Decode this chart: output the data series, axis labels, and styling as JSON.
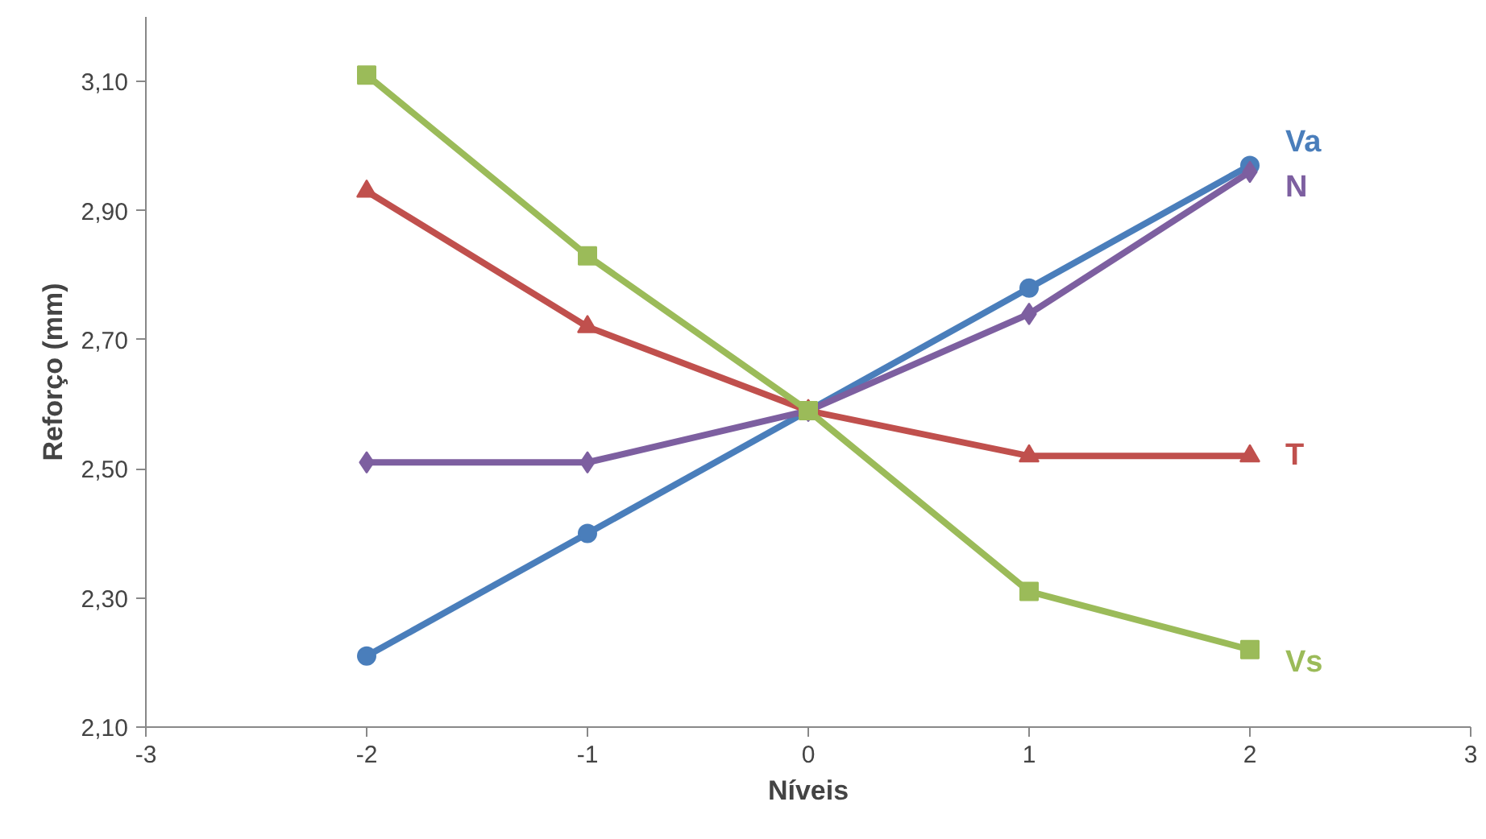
{
  "chart_data": {
    "type": "line",
    "xlabel": "Níveis",
    "ylabel": "Reforço (mm)",
    "x": [
      -2,
      -1,
      0,
      1,
      2
    ],
    "series": [
      {
        "name": "Va",
        "color": "#4a7ebb",
        "marker": "circle",
        "values": [
          2.21,
          2.4,
          2.59,
          2.78,
          2.97
        ]
      },
      {
        "name": "N",
        "color": "#7d5fa0",
        "marker": "diamond",
        "values": [
          2.51,
          2.51,
          2.59,
          2.74,
          2.96
        ]
      },
      {
        "name": "T",
        "color": "#c0504d",
        "marker": "triangle",
        "values": [
          2.93,
          2.72,
          2.59,
          2.52,
          2.52
        ]
      },
      {
        "name": "Vs",
        "color": "#9bbb59",
        "marker": "square",
        "values": [
          3.11,
          2.83,
          2.59,
          2.31,
          2.22
        ]
      }
    ],
    "xlim": [
      -3,
      3
    ],
    "xticks": [
      -3,
      -2,
      -1,
      0,
      1,
      2,
      3
    ],
    "ylim": [
      2.1,
      3.2
    ],
    "yticks": [
      {
        "value": 2.1,
        "label": "2,10"
      },
      {
        "value": 2.3,
        "label": "2,30"
      },
      {
        "value": 2.5,
        "label": "2,50"
      },
      {
        "value": 2.7,
        "label": "2,70"
      },
      {
        "value": 2.9,
        "label": "2,90"
      },
      {
        "value": 3.1,
        "label": "3,10"
      }
    ],
    "grid": false,
    "line_style": "solid"
  }
}
